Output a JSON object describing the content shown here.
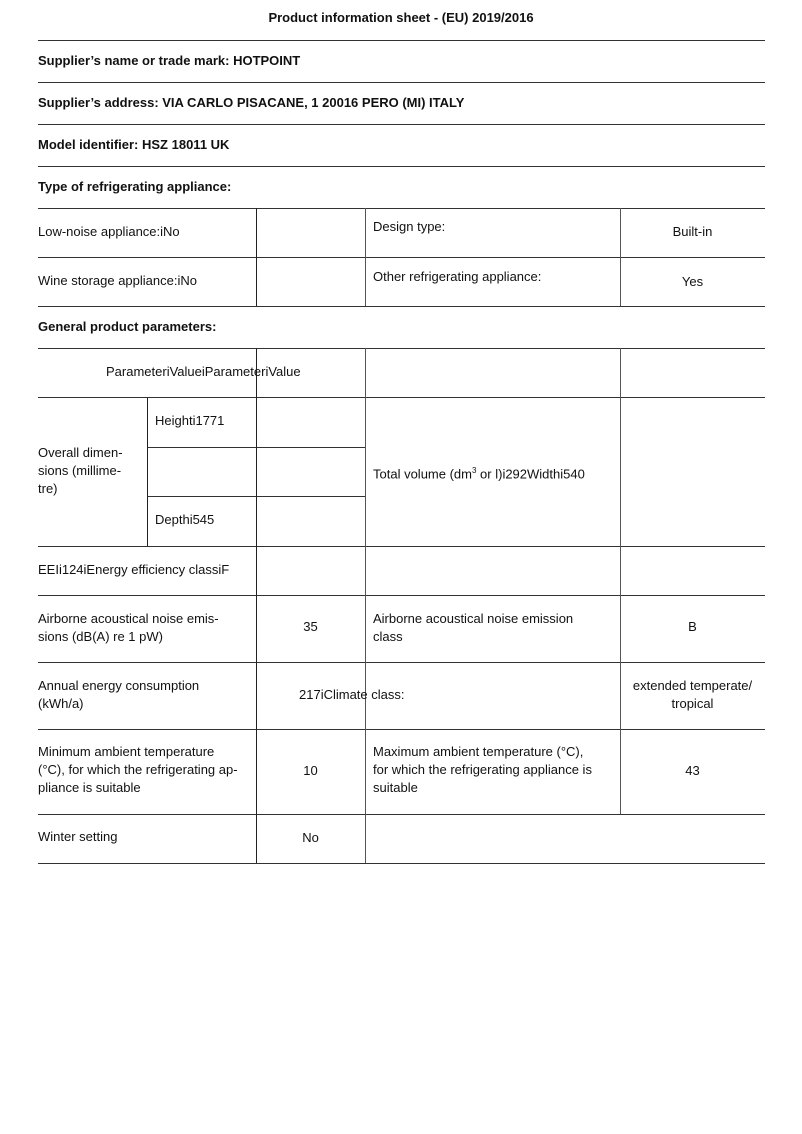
{
  "title": "Product information sheet - (EU) 2019/2016",
  "supplier_name": "Supplier’s name or trade mark: HOTPOINT",
  "supplier_address": "Supplier’s address: VIA CARLO PISACANE, 1 20016 PERO (MI) ITALY",
  "model_identifier": "Model identifier: HSZ 18011 UK",
  "type_heading": "Type of refrigerating appliance:",
  "type_table": {
    "low_noise": "Low-noise appliance:iNo",
    "design_type_label": "Design type:",
    "design_type_value": "Built-in",
    "wine_storage": "Wine storage appliance:iNo",
    "other_label": "Other refrigerating appliance:",
    "other_value": "Yes"
  },
  "general_heading": "General product parameters:",
  "params": {
    "header": "ParameteriValueiParameteriValue",
    "dims_label": "Overall dimen-\nsions (millime-\ntre)",
    "height": "Heighti1771",
    "depth": "Depthi545",
    "total_volume_prefix": "Total volume (dm",
    "total_volume_sup": "3",
    "total_volume_suffix": " or l)i292Widthi540",
    "eei": "EEIi124iEnergy efficiency classiF",
    "noise_label": "Airborne acoustical noise emis-\nsions (dB(A) re 1 pW)",
    "noise_value": "35",
    "noise_class_label": "Airborne acoustical noise emission\nclass",
    "noise_class_value": "B",
    "energy_label": "Annual energy consumption\n(kWh/a)",
    "energy_climate": "217iClimate class:",
    "climate_value": "extended temperate/\ntropical",
    "min_temp_label": "Minimum ambient temperature\n(°C), for which the refrigerating ap-\npliance is suitable",
    "min_temp_value": "10",
    "max_temp_label": "Maximum ambient temperature (°C),\nfor which the refrigerating appliance is\nsuitable",
    "max_temp_value": "43",
    "winter_label": "Winter setting",
    "winter_value": "No"
  }
}
